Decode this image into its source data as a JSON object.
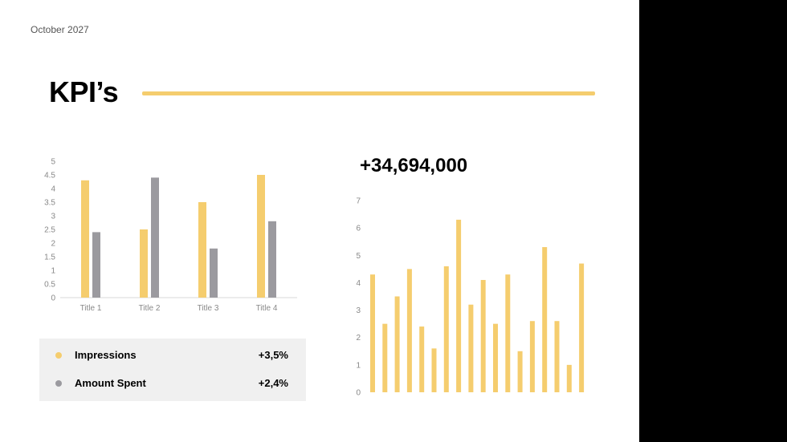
{
  "slide": {
    "date": "October 2027",
    "title": "KPI’s",
    "headline_value": "+34,694,000"
  },
  "colors": {
    "yellow": "#f5cd6e",
    "gray": "#9b9a9f",
    "axis": "#d8d8d8",
    "tick": "#888888"
  },
  "legend": {
    "items": [
      {
        "label": "Impressions",
        "value": "+3,5%",
        "color": "#f5cd6e"
      },
      {
        "label": "Amount Spent",
        "value": "+2,4%",
        "color": "#9b9a9f"
      }
    ]
  },
  "chart_data": [
    {
      "type": "bar",
      "categories": [
        "Title 1",
        "Title 2",
        "Title 3",
        "Title 4"
      ],
      "series": [
        {
          "values": [
            4.3,
            2.5,
            3.5,
            4.5
          ]
        },
        {
          "values": [
            2.4,
            4.4,
            1.8,
            2.8
          ]
        }
      ],
      "ylim": [
        0,
        5
      ],
      "yticks": [
        "0",
        "0.5",
        "1",
        "1.5",
        "2",
        "2.5",
        "3",
        "3.5",
        "4",
        "4.5",
        "5"
      ],
      "grid": false
    },
    {
      "type": "bar",
      "title": "+34,694,000",
      "values": [
        4.3,
        2.5,
        3.5,
        4.5,
        2.4,
        1.6,
        4.6,
        6.3,
        3.2,
        4.1,
        2.5,
        4.3,
        1.5,
        2.6,
        5.3,
        2.6,
        1.0,
        4.7
      ],
      "ylim": [
        0,
        7
      ],
      "yticks": [
        "0",
        "1",
        "2",
        "3",
        "4",
        "5",
        "6",
        "7"
      ],
      "grid": false
    }
  ]
}
